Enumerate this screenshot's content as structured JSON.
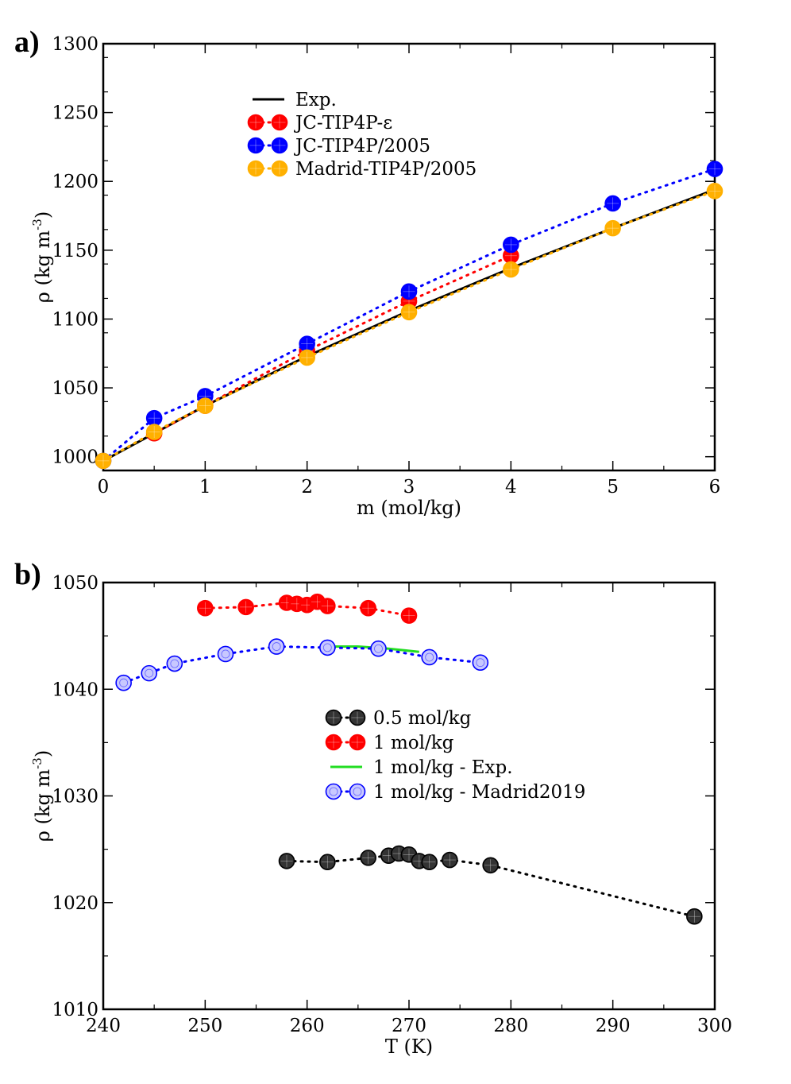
{
  "chart_data": [
    {
      "panel_label": "a)",
      "type": "line",
      "title": "",
      "xlabel": "m (mol/kg)",
      "ylabel_main": "ρ (kg m",
      "ylabel_sup": "-3",
      "ylabel_end": ")",
      "xlim": [
        0,
        6
      ],
      "ylim": [
        990,
        1300
      ],
      "x_ticks": [
        0,
        1,
        2,
        3,
        4,
        5,
        6
      ],
      "y_ticks": [
        1000,
        1050,
        1100,
        1150,
        1200,
        1250,
        1300
      ],
      "x_tick_labels": [
        "0",
        "1",
        "2",
        "3",
        "4",
        "5",
        "6"
      ],
      "y_tick_labels": [
        "1000",
        "1050",
        "1100",
        "1150",
        "1200",
        "1250",
        "1300"
      ],
      "grid": false,
      "legend_position": "top-left",
      "series": [
        {
          "name": "Exp.",
          "color": "#000000",
          "style": "solid-line",
          "x": [
            0,
            1,
            2,
            3,
            4,
            5,
            6
          ],
          "y": [
            997,
            1037,
            1073,
            1106,
            1137,
            1166,
            1194
          ]
        },
        {
          "name": "JC-TIP4P-ε",
          "color": "#ff0000",
          "style": "dotted-markers",
          "x": [
            0.5,
            1,
            2,
            3,
            4
          ],
          "y": [
            1017,
            1037,
            1077,
            1113,
            1146
          ]
        },
        {
          "name": "JC-TIP4P/2005",
          "color": "#0000ff",
          "style": "dotted-markers",
          "x": [
            0,
            0.5,
            1,
            2,
            3,
            4,
            5,
            6
          ],
          "y": [
            997,
            1028,
            1044,
            1082,
            1120,
            1154,
            1184,
            1209
          ]
        },
        {
          "name": "Madrid-TIP4P/2005",
          "color": "#ffb000",
          "style": "dotted-markers",
          "x": [
            0,
            0.5,
            1,
            2,
            3,
            4,
            5,
            6
          ],
          "y": [
            997,
            1018,
            1037,
            1072,
            1105,
            1136,
            1166,
            1193
          ]
        }
      ]
    },
    {
      "panel_label": "b)",
      "type": "line",
      "title": "",
      "xlabel": "T (K)",
      "ylabel_main": "ρ (kg m",
      "ylabel_sup": "-3",
      "ylabel_end": ")",
      "xlim": [
        240,
        300
      ],
      "ylim": [
        1010,
        1050
      ],
      "x_ticks": [
        240,
        250,
        260,
        270,
        280,
        290,
        300
      ],
      "y_ticks": [
        1010,
        1020,
        1030,
        1040,
        1050
      ],
      "x_tick_labels": [
        "240",
        "250",
        "260",
        "270",
        "280",
        "290",
        "300"
      ],
      "y_tick_labels": [
        "1010",
        "1020",
        "1030",
        "1040",
        "1050"
      ],
      "grid": false,
      "legend_position": "center",
      "series": [
        {
          "name": "0.5 mol/kg",
          "color": "#333333",
          "style": "dotted-markers",
          "x": [
            258,
            262,
            266,
            268,
            269,
            270,
            271,
            272,
            274,
            278,
            298
          ],
          "y": [
            1023.9,
            1023.8,
            1024.2,
            1024.4,
            1024.6,
            1024.5,
            1023.9,
            1023.8,
            1024.0,
            1023.5,
            1018.7
          ]
        },
        {
          "name": "1 mol/kg",
          "color": "#ff0000",
          "style": "dotted-markers",
          "x": [
            250,
            254,
            258,
            259,
            260,
            261,
            262,
            266,
            270
          ],
          "y": [
            1047.6,
            1047.7,
            1048.1,
            1048.0,
            1047.9,
            1048.2,
            1047.8,
            1047.6,
            1046.9
          ]
        },
        {
          "name": "1 mol/kg - Exp.",
          "color": "#22dd22",
          "style": "solid-line",
          "x": [
            262,
            265,
            268,
            271
          ],
          "y": [
            1044.0,
            1044.0,
            1043.8,
            1043.5
          ]
        },
        {
          "name": "1 mol/kg - Madrid2019",
          "color": "#0000ff",
          "style": "dotted-markers-hollow",
          "x": [
            242,
            244.5,
            247,
            252,
            257,
            262,
            267,
            272,
            277
          ],
          "y": [
            1040.6,
            1041.5,
            1042.4,
            1043.3,
            1044.0,
            1043.9,
            1043.8,
            1043.0,
            1042.5
          ]
        }
      ]
    }
  ]
}
